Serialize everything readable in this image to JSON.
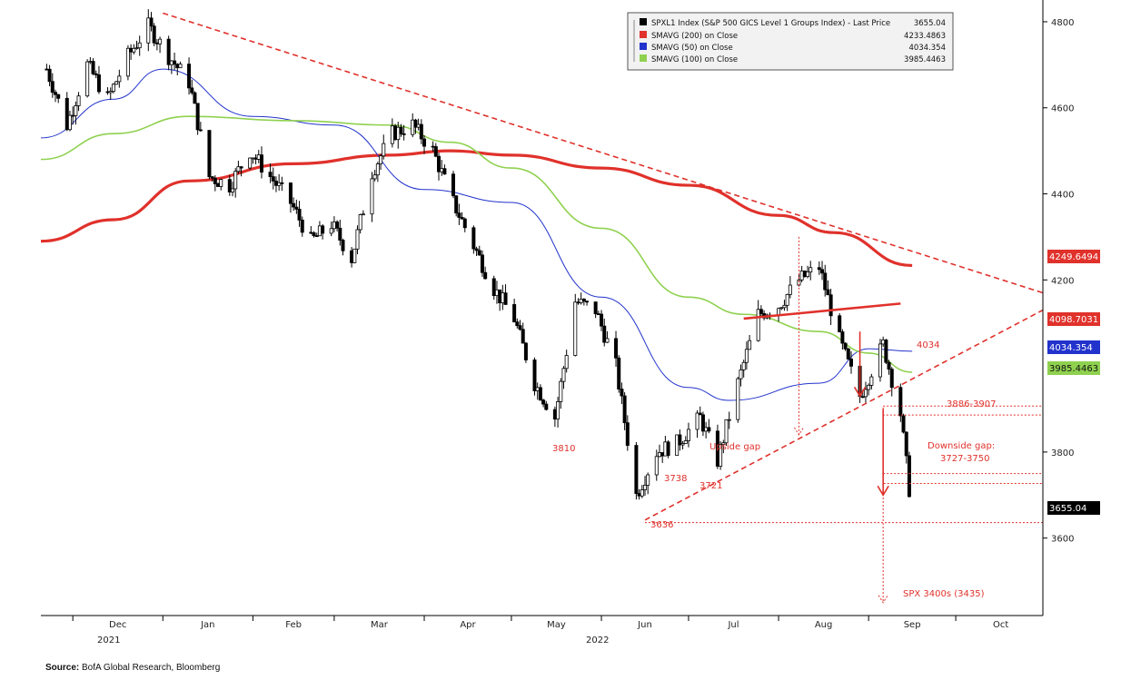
{
  "legend": [
    {
      "label": "SPXL1 Index (S&P 500 GICS Level 1 Groups Index) - Last Price",
      "value": "3655.04",
      "color": "#000000"
    },
    {
      "label": "SMAVG (200)  on Close",
      "value": "4233.4863",
      "color": "#e0312b"
    },
    {
      "label": "SMAVG (50)  on Close",
      "value": "4034.354",
      "color": "#2233cc"
    },
    {
      "label": "SMAVG (100)  on Close",
      "value": "3985.4463",
      "color": "#8fd14f"
    }
  ],
  "y_ticks": [
    "4800",
    "4600",
    "4400",
    "4200",
    "3800",
    "3600"
  ],
  "x_ticks": [
    "Dec",
    "Jan",
    "Feb",
    "Mar",
    "Apr",
    "May",
    "Jun",
    "Jul",
    "Aug",
    "Sep",
    "Oct"
  ],
  "x_years": [
    "2021",
    "2022"
  ],
  "value_tags": [
    {
      "text": "4249.6494",
      "bg": "#e0312b"
    },
    {
      "text": "4098.7031",
      "bg": "#e0312b"
    },
    {
      "text": "4034.354",
      "bg": "#2233cc"
    },
    {
      "text": "3985.4463",
      "bg": "#8fd14f"
    },
    {
      "text": "3655.04",
      "bg": "#000000"
    }
  ],
  "annotations": {
    "a3810": "3810",
    "a3738": "3738",
    "a3721": "3721",
    "a3636": "3636",
    "upside": "Upside gap",
    "gap3886": "3886-3907",
    "downside1": "Downside gap:",
    "downside2": "3727-3750",
    "target": "SPX 3400s (3435)",
    "ma50": "4034"
  },
  "source_label": "Source:",
  "source_text": "BofA Global Research, Bloomberg",
  "chart_data": {
    "type": "line",
    "ylim": [
      3420,
      4840
    ],
    "y_axis_side": "right",
    "grid": false,
    "legend_position": "top-right",
    "series": [
      {
        "name": "SPXL1 Index (S&P 500 GICS Level 1 Groups Index) - Last Price",
        "style": "candlestick",
        "color": "#000000",
        "x": [
          "2021-11-22",
          "2021-11-29",
          "2021-12-06",
          "2021-12-13",
          "2021-12-20",
          "2021-12-27",
          "2022-01-03",
          "2022-01-10",
          "2022-01-17",
          "2022-01-24",
          "2022-01-31",
          "2022-02-07",
          "2022-02-14",
          "2022-02-21",
          "2022-02-28",
          "2022-03-07",
          "2022-03-14",
          "2022-03-21",
          "2022-03-28",
          "2022-04-04",
          "2022-04-11",
          "2022-04-18",
          "2022-04-25",
          "2022-05-02",
          "2022-05-09",
          "2022-05-16",
          "2022-05-23",
          "2022-05-30",
          "2022-06-06",
          "2022-06-13",
          "2022-06-20",
          "2022-06-27",
          "2022-07-05",
          "2022-07-11",
          "2022-07-18",
          "2022-07-25",
          "2022-08-01",
          "2022-08-08",
          "2022-08-15",
          "2022-08-22",
          "2022-08-29",
          "2022-09-06",
          "2022-09-12",
          "2022-09-16"
        ],
        "y": [
          4690,
          4560,
          4700,
          4620,
          4720,
          4790,
          4720,
          4660,
          4440,
          4420,
          4500,
          4440,
          4380,
          4290,
          4330,
          4250,
          4450,
          4540,
          4560,
          4500,
          4380,
          4280,
          4180,
          4110,
          3960,
          3880,
          4150,
          4130,
          4000,
          3700,
          3800,
          3820,
          3880,
          3780,
          3960,
          4120,
          4140,
          4200,
          4230,
          4060,
          3930,
          4050,
          3890,
          3655.04
        ]
      },
      {
        "name": "SMAVG (200)  on Close",
        "color": "#e0312b",
        "x": [
          "2021-11-20",
          "2021-12-15",
          "2022-01-10",
          "2022-02-15",
          "2022-03-20",
          "2022-04-10",
          "2022-05-01",
          "2022-06-01",
          "2022-07-01",
          "2022-08-01",
          "2022-08-20",
          "2022-09-16"
        ],
        "y": [
          4290,
          4340,
          4430,
          4470,
          4490,
          4500,
          4490,
          4460,
          4420,
          4350,
          4310,
          4233.4863
        ]
      },
      {
        "name": "SMAVG (50)  on Close",
        "color": "#2233cc",
        "x": [
          "2021-11-20",
          "2021-12-15",
          "2022-01-01",
          "2022-02-01",
          "2022-03-01",
          "2022-04-01",
          "2022-05-01",
          "2022-06-01",
          "2022-07-01",
          "2022-07-15",
          "2022-08-15",
          "2022-09-01",
          "2022-09-16"
        ],
        "y": [
          4530,
          4620,
          4690,
          4580,
          4560,
          4410,
          4380,
          4160,
          3950,
          3920,
          3960,
          4040,
          4034.354
        ]
      },
      {
        "name": "SMAVG (100)  on Close",
        "color": "#8fd14f",
        "x": [
          "2021-11-20",
          "2021-12-15",
          "2022-01-10",
          "2022-02-15",
          "2022-03-20",
          "2022-04-10",
          "2022-05-01",
          "2022-06-01",
          "2022-07-01",
          "2022-07-20",
          "2022-08-15",
          "2022-09-01",
          "2022-09-16"
        ],
        "y": [
          4480,
          4540,
          4580,
          4570,
          4560,
          4520,
          4460,
          4320,
          4160,
          4120,
          4080,
          4030,
          3985.4463
        ]
      }
    ],
    "overlays": [
      {
        "kind": "trendline",
        "style": "dashed",
        "x": [
          "2022-01-01",
          "2022-10-31"
        ],
        "y": [
          4820,
          4170
        ]
      },
      {
        "kind": "trendline",
        "style": "dashed",
        "x": [
          "2022-06-16",
          "2022-10-31"
        ],
        "y": [
          3642,
          4130
        ]
      },
      {
        "kind": "line",
        "style": "solid",
        "x": [
          "2022-07-20",
          "2022-09-12"
        ],
        "y": [
          4110,
          4145
        ]
      },
      {
        "kind": "hline",
        "style": "dotted",
        "x": [
          "2022-06-16",
          "2022-10-31"
        ],
        "y": 3636
      },
      {
        "kind": "vline",
        "style": "dotted",
        "x": "2022-08-08",
        "y": [
          4300,
          3840
        ]
      },
      {
        "kind": "vline",
        "style": "dotted",
        "x": "2022-09-06",
        "y": [
          3880,
          3450
        ]
      }
    ]
  }
}
